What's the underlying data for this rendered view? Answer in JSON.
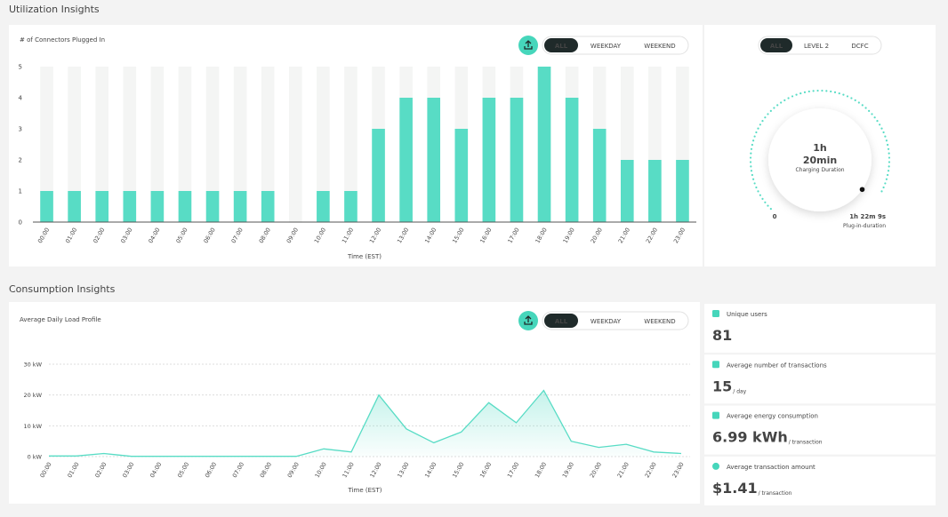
{
  "utilization": {
    "title": "Utilization Insights",
    "filters": [
      "ALL",
      "WEEKDAY",
      "WEEKEND"
    ],
    "chart": {
      "type": "bar",
      "title": "# of Connectors Plugged In",
      "xlabel": "Time (EST)",
      "categories": [
        "00:00",
        "01:00",
        "02:00",
        "03:00",
        "04:00",
        "05:00",
        "06:00",
        "07:00",
        "08:00",
        "09:00",
        "10:00",
        "11:00",
        "12:00",
        "13:00",
        "14:00",
        "15:00",
        "16:00",
        "17:00",
        "18:00",
        "19:00",
        "20:00",
        "21:00",
        "22:00",
        "23:00"
      ],
      "values": [
        1,
        1,
        1,
        1,
        1,
        1,
        1,
        1,
        1,
        0,
        1,
        1,
        3,
        4,
        4,
        3,
        4,
        4,
        5,
        4,
        3,
        2,
        2,
        2
      ],
      "color": "#58dcc5",
      "ylim": [
        0,
        5
      ],
      "yticks": [
        0,
        1,
        2,
        3,
        4,
        5
      ]
    },
    "gauge": {
      "filters": [
        "ALL",
        "LEVEL 2",
        "DCFC"
      ],
      "hours": "1h",
      "minutes": "20min",
      "caption": "Charging Duration",
      "min_label": "0",
      "max_label": "1h 22m 9s",
      "max_caption": "Plug-in-duration"
    }
  },
  "consumption": {
    "title": "Consumption Insights",
    "filters": [
      "ALL",
      "WEEKDAY",
      "WEEKEND"
    ],
    "chart": {
      "type": "line",
      "title": "Average Daily Load Profile",
      "xlabel": "Time (EST)",
      "categories": [
        "00:00",
        "01:00",
        "02:00",
        "03:00",
        "04:00",
        "05:00",
        "06:00",
        "07:00",
        "08:00",
        "09:00",
        "10:00",
        "11:00",
        "12:00",
        "13:00",
        "14:00",
        "15:00",
        "16:00",
        "17:00",
        "18:00",
        "19:00",
        "20:00",
        "21:00",
        "22:00",
        "23:00"
      ],
      "values": [
        0.2,
        0.2,
        1,
        0.1,
        0.1,
        0.1,
        0.1,
        0.1,
        0.1,
        0.1,
        2.5,
        1.5,
        20,
        9,
        4.5,
        8,
        17.5,
        11,
        21.5,
        5,
        3,
        4,
        1.5,
        1
      ],
      "color": "#58dcc5",
      "ylim": [
        0,
        30
      ],
      "yticks": [
        {
          "value": 0,
          "label": "0 kW"
        },
        {
          "value": 10,
          "label": "10 kW"
        },
        {
          "value": 20,
          "label": "20 kW"
        },
        {
          "value": 30,
          "label": "30 kW"
        }
      ]
    },
    "stats": [
      {
        "label": "Unique users",
        "value": "81"
      },
      {
        "label": "Average number of transactions",
        "value": "15",
        "unit": "/ day"
      },
      {
        "label": "Average energy consumption",
        "value": "6.99 kWh",
        "unit": "/ transaction"
      },
      {
        "label": "Average transaction amount",
        "value": "$1.41",
        "unit": "/ transaction"
      }
    ]
  }
}
